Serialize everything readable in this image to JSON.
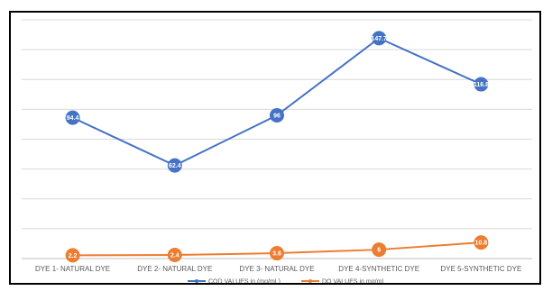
{
  "chart_data": {
    "type": "line",
    "categories": [
      "DYE 1- NATURAL DYE",
      "DYE 2- NATURAL DYE",
      "DYE 3- NATURAL DYE",
      "DYE 4-SYNTHETIC DYE",
      "DYE 5-SYNTHETIC DYE"
    ],
    "series": [
      {
        "name": "COD VALUES in (mg/mL)",
        "color": "#4472C4",
        "values": [
          94.4,
          62.4,
          96,
          147.7,
          116.8
        ],
        "labels": [
          "94.4",
          "62.4",
          "96",
          "147.7",
          "116.8"
        ]
      },
      {
        "name": "DO VALUES in mg/mL",
        "color": "#ED7D31",
        "values": [
          2.2,
          2.4,
          3.6,
          6,
          10.8
        ],
        "labels": [
          "2.2",
          "2.4",
          "3.6",
          "6",
          "10.8"
        ]
      }
    ],
    "ylim": [
      0,
      160
    ],
    "grid": true,
    "legend_position": "bottom",
    "title": "",
    "xlabel": "",
    "ylabel": ""
  }
}
